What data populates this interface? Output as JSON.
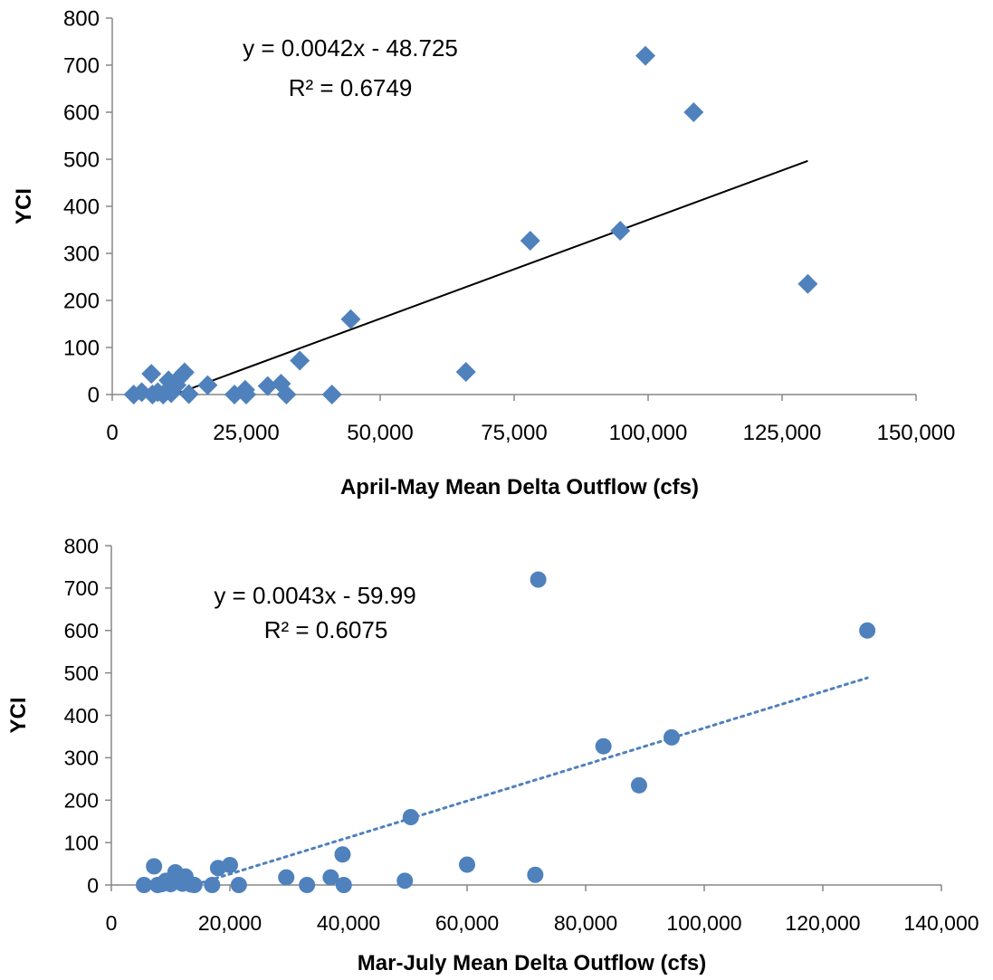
{
  "chart_data": [
    {
      "type": "scatter",
      "xlabel": "April-May Mean Delta Outflow (cfs)",
      "ylabel": "YCI",
      "xlim": [
        0,
        150000
      ],
      "ylim": [
        0,
        800
      ],
      "xticks": [
        0,
        25000,
        50000,
        75000,
        100000,
        125000,
        150000
      ],
      "xtick_labels": [
        "0",
        "25,000",
        "50,000",
        "75,000",
        "100,000",
        "125,000",
        "150,000"
      ],
      "yticks": [
        0,
        100,
        200,
        300,
        400,
        500,
        600,
        700,
        800
      ],
      "ytick_labels": [
        "0",
        "100",
        "200",
        "300",
        "400",
        "500",
        "600",
        "700",
        "800"
      ],
      "grid": false,
      "marker": "diamond",
      "color": "#4F81BD",
      "trendline": {
        "style": "solid",
        "color": "#000000",
        "x_range": [
          11600,
          129800
        ],
        "equation": "y = 0.0042x - 48.725",
        "r2": "R² = 0.6749"
      },
      "points": [
        {
          "x": 4000,
          "y": 0
        },
        {
          "x": 5500,
          "y": 5
        },
        {
          "x": 7300,
          "y": 44
        },
        {
          "x": 7500,
          "y": 0
        },
        {
          "x": 8500,
          "y": 5
        },
        {
          "x": 9500,
          "y": 0
        },
        {
          "x": 10500,
          "y": 30
        },
        {
          "x": 11000,
          "y": 3
        },
        {
          "x": 12000,
          "y": 20
        },
        {
          "x": 12500,
          "y": 35
        },
        {
          "x": 13500,
          "y": 47
        },
        {
          "x": 14300,
          "y": 1
        },
        {
          "x": 17800,
          "y": 20
        },
        {
          "x": 22800,
          "y": 0
        },
        {
          "x": 24800,
          "y": 10
        },
        {
          "x": 25000,
          "y": 0
        },
        {
          "x": 29000,
          "y": 18
        },
        {
          "x": 31500,
          "y": 23
        },
        {
          "x": 32500,
          "y": 0
        },
        {
          "x": 35000,
          "y": 72
        },
        {
          "x": 41000,
          "y": 0
        },
        {
          "x": 44500,
          "y": 160
        },
        {
          "x": 66000,
          "y": 48
        },
        {
          "x": 78000,
          "y": 327
        },
        {
          "x": 94800,
          "y": 348
        },
        {
          "x": 99500,
          "y": 720
        },
        {
          "x": 108500,
          "y": 600
        },
        {
          "x": 129800,
          "y": 235
        }
      ]
    },
    {
      "type": "scatter",
      "xlabel": "Mar-July Mean Delta Outflow (cfs)",
      "ylabel": "YCI",
      "xlim": [
        0,
        140000
      ],
      "ylim": [
        0,
        800
      ],
      "xticks": [
        0,
        20000,
        40000,
        60000,
        80000,
        100000,
        120000,
        140000
      ],
      "xtick_labels": [
        "0",
        "20,000",
        "40,000",
        "60,000",
        "80,000",
        "100,000",
        "120,000",
        "140,000"
      ],
      "yticks": [
        0,
        100,
        200,
        300,
        400,
        500,
        600,
        700,
        800
      ],
      "ytick_labels": [
        "0",
        "100",
        "200",
        "300",
        "400",
        "500",
        "600",
        "700",
        "800"
      ],
      "grid": false,
      "marker": "circle",
      "color": "#4F81BD",
      "trendline": {
        "style": "dotted",
        "color": "#4F81BD",
        "x_range": [
          14000,
          127500
        ],
        "equation": "y = 0.0043x - 59.99",
        "r2": "R² = 0.6075"
      },
      "points": [
        {
          "x": 5500,
          "y": 0
        },
        {
          "x": 7200,
          "y": 44
        },
        {
          "x": 7800,
          "y": 0
        },
        {
          "x": 8500,
          "y": 2
        },
        {
          "x": 9200,
          "y": 10
        },
        {
          "x": 10000,
          "y": 2
        },
        {
          "x": 10800,
          "y": 30
        },
        {
          "x": 11500,
          "y": 15
        },
        {
          "x": 12000,
          "y": 3
        },
        {
          "x": 12500,
          "y": 20
        },
        {
          "x": 13500,
          "y": 1
        },
        {
          "x": 14000,
          "y": 0
        },
        {
          "x": 17000,
          "y": 0
        },
        {
          "x": 18000,
          "y": 40
        },
        {
          "x": 20000,
          "y": 47
        },
        {
          "x": 21500,
          "y": 0
        },
        {
          "x": 29500,
          "y": 18
        },
        {
          "x": 33000,
          "y": 0
        },
        {
          "x": 37000,
          "y": 18
        },
        {
          "x": 39000,
          "y": 72
        },
        {
          "x": 39200,
          "y": 0
        },
        {
          "x": 49500,
          "y": 10
        },
        {
          "x": 50500,
          "y": 160
        },
        {
          "x": 60000,
          "y": 48
        },
        {
          "x": 71500,
          "y": 24
        },
        {
          "x": 72000,
          "y": 720
        },
        {
          "x": 83000,
          "y": 327
        },
        {
          "x": 89000,
          "y": 235
        },
        {
          "x": 94500,
          "y": 348
        },
        {
          "x": 127500,
          "y": 600
        }
      ]
    }
  ]
}
